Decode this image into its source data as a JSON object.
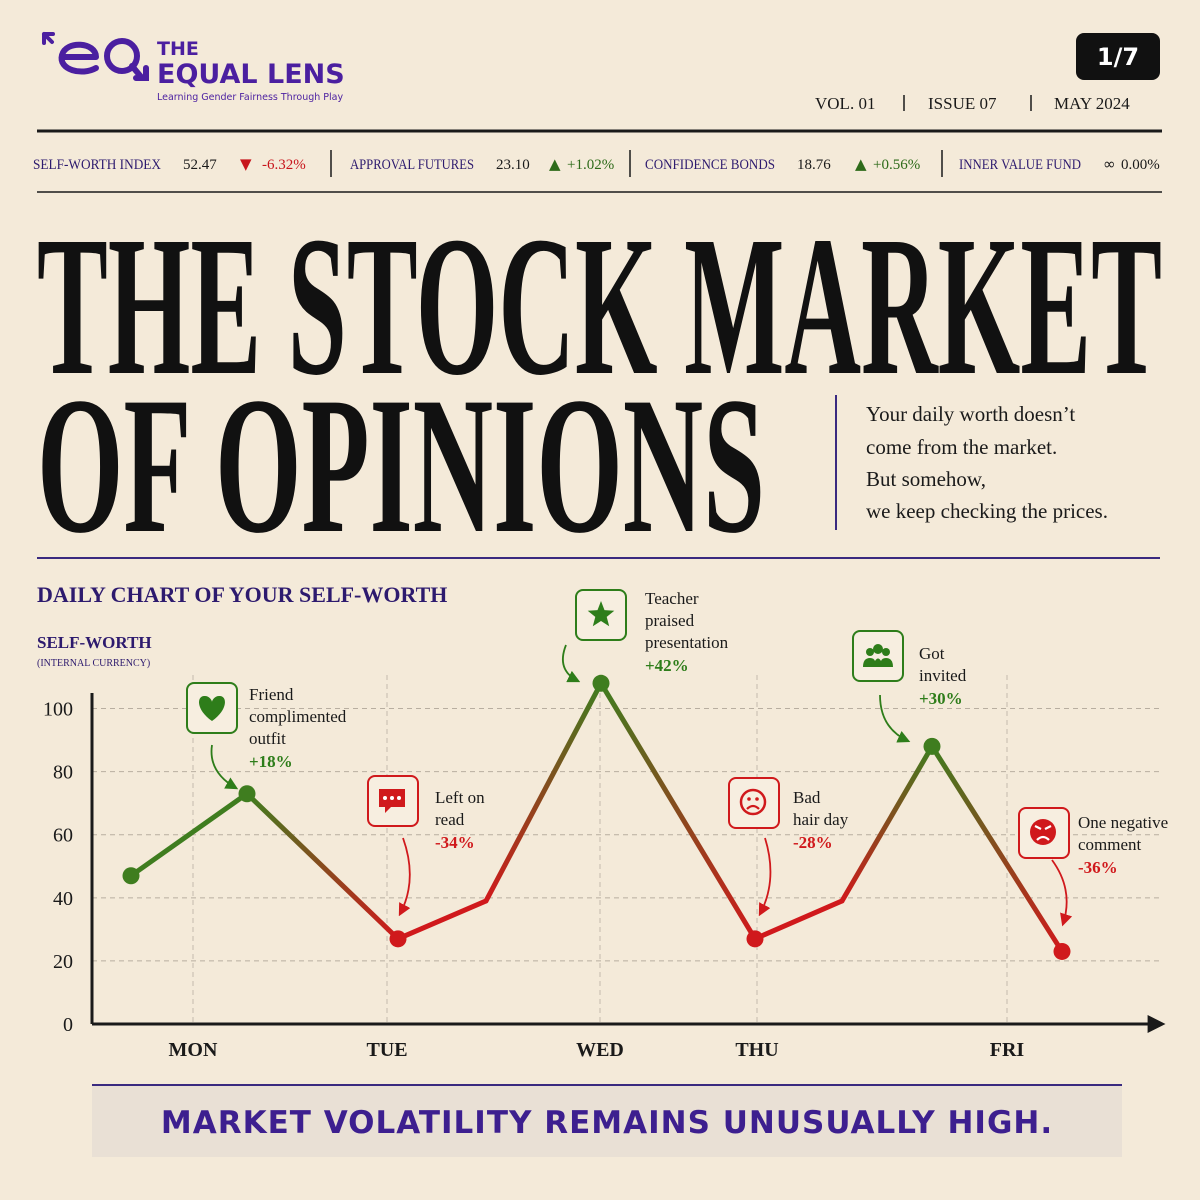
{
  "header": {
    "logo_top": "THE",
    "logo_name": "EQUAL LENS",
    "tagline": "Learning Gender Fairness Through Play",
    "page": "1/7",
    "issue": [
      "VOL. 01",
      "ISSUE 07",
      "MAY 2024"
    ]
  },
  "ticker": [
    {
      "name": "SELF-WORTH INDEX",
      "value": "52.47",
      "symbol": "▼",
      "change": "-6.32%",
      "color": "#c8161d"
    },
    {
      "name": "APPROVAL FUTURES",
      "value": "23.10",
      "symbol": "▲",
      "change": "+1.02%",
      "color": "#2e6b1a"
    },
    {
      "name": "CONFIDENCE BONDS",
      "value": "18.76",
      "symbol": "▲",
      "change": "+0.56%",
      "color": "#2e6b1a"
    },
    {
      "name": "INNER VALUE FUND",
      "symbol": "∞",
      "change": "0.00%",
      "color": "#1a1a1a"
    }
  ],
  "headline": [
    "THE STOCK MARKET",
    "OF OPINIONS"
  ],
  "subtext": [
    "Your daily worth doesn’t",
    "come from the market.",
    "But somehow,",
    "we keep checking the prices."
  ],
  "chart_data": {
    "type": "line",
    "title": "DAILY CHART OF YOUR SELF-WORTH",
    "y_label": "SELF-WORTH",
    "y_sublabel": "(INTERNAL CURRENCY)",
    "x": [
      0.39,
      1.55,
      3.06,
      3.94,
      5.09,
      6.63,
      7.5,
      8.4,
      9.7
    ],
    "values": [
      47,
      73,
      27,
      39,
      108,
      27,
      39,
      88,
      23
    ],
    "rise_color": "#3f7d1f",
    "fall_color": "#d0191c",
    "xlim": [
      0,
      10.6
    ],
    "xticks": [
      {
        "value": 1.01,
        "label": "MON"
      },
      {
        "value": 2.95,
        "label": "TUE"
      },
      {
        "value": 5.08,
        "label": "WED"
      },
      {
        "value": 6.65,
        "label": "THU"
      },
      {
        "value": 9.15,
        "label": "FRI"
      }
    ],
    "ylim": [
      0,
      110
    ],
    "yticks": [
      0,
      20,
      40,
      60,
      80,
      100
    ],
    "grid": true,
    "annotations": [
      {
        "text": [
          "Friend",
          "complimented",
          "outfit"
        ],
        "change": "+18%",
        "color": "#2e7d1a"
      },
      {
        "text": [
          "Left on",
          "read"
        ],
        "change": "-34%",
        "color": "#d0191c"
      },
      {
        "text": [
          "Teacher",
          "praised",
          "presentation"
        ],
        "change": "+42%",
        "color": "#2e7d1a"
      },
      {
        "text": [
          "Bad",
          "hair day"
        ],
        "change": "-28%",
        "color": "#d0191c"
      },
      {
        "text": [
          "Got",
          "invited"
        ],
        "change": "+30%",
        "color": "#2e7d1a"
      },
      {
        "text": [
          "One negative",
          "comment"
        ],
        "change": "-36%",
        "color": "#d0191c"
      }
    ]
  },
  "footer": "MARKET VOLATILITY REMAINS UNUSUALLY HIGH."
}
